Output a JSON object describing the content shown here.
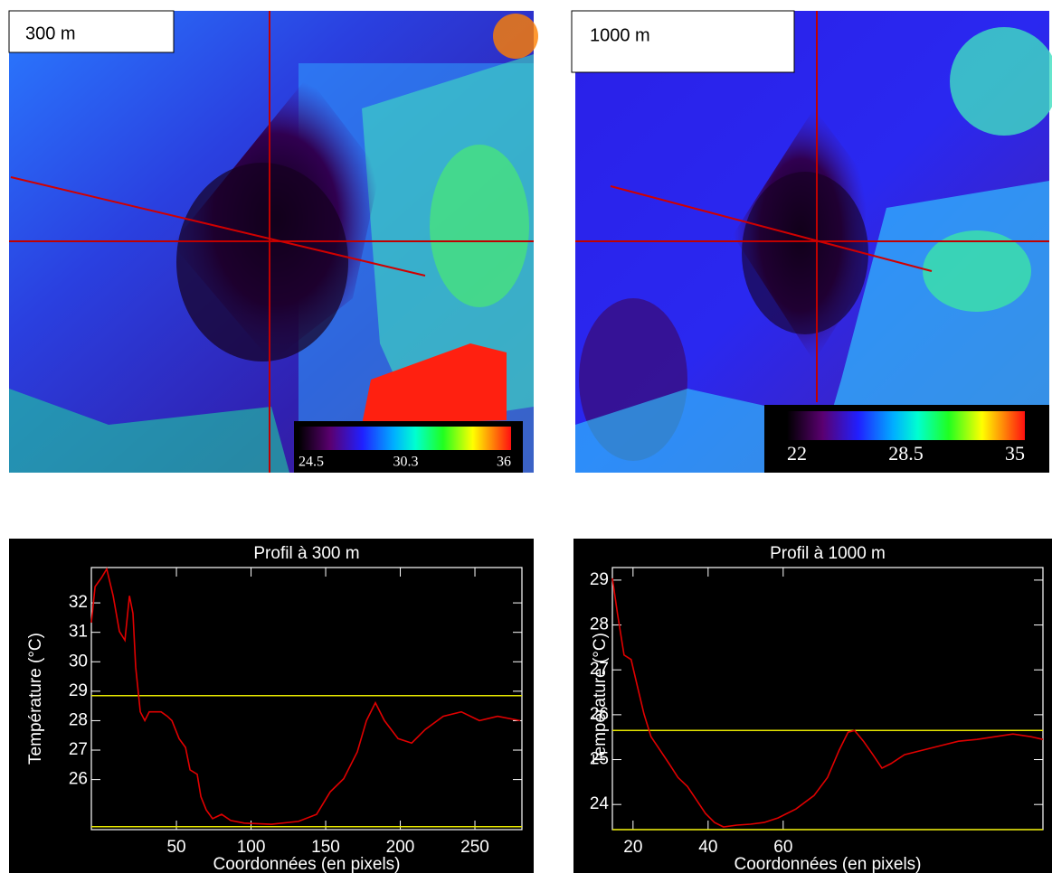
{
  "images": [
    {
      "label": "300 m",
      "clim": [
        24.5,
        36
      ],
      "colorbar_ticks": [
        24.5,
        30.3,
        36
      ]
    },
    {
      "label": "1000 m",
      "clim": [
        22,
        35
      ],
      "colorbar_ticks": [
        22,
        28.5,
        35
      ]
    }
  ],
  "chart_data": [
    {
      "type": "line",
      "title": "Profil à 300 m",
      "xlabel": "Coordonnées (en pixels)",
      "ylabel": "Température (°C)",
      "x": [
        -7,
        -4.5,
        -0.3,
        3.3,
        7.6,
        11.8,
        15.5,
        18.5,
        20.9,
        22.7,
        25.8,
        28.8,
        31.8,
        34.8,
        39.7,
        43.9,
        47.0,
        51.8,
        56.1,
        59.1,
        63.9,
        66.4,
        70.0,
        74.2,
        80.3,
        86.4,
        95.5,
        113.6,
        131.8,
        143.9,
        153.0,
        162.1,
        171.2,
        177.3,
        183.3,
        189.4,
        198.5,
        207.6,
        216.7,
        228.8,
        240.9,
        253.0,
        265.2,
        280.3
      ],
      "series": [
        {
          "color": "#e00000",
          "values": [
            31.33,
            32.55,
            32.85,
            33.15,
            32.24,
            31.03,
            30.73,
            32.24,
            31.64,
            29.82,
            28.3,
            28.0,
            28.3,
            28.3,
            28.3,
            28.15,
            28.0,
            27.39,
            27.09,
            26.33,
            26.18,
            25.42,
            24.97,
            24.67,
            24.82,
            24.61,
            24.52,
            24.48,
            24.58,
            24.82,
            25.58,
            26.03,
            26.94,
            28.0,
            28.61,
            28.0,
            27.39,
            27.24,
            27.7,
            28.15,
            28.3,
            28.0,
            28.15,
            28.0
          ]
        }
      ],
      "hlines": [
        28.85,
        24.4
      ],
      "hline_color": "#e8e800",
      "xlim": [
        -7,
        281.5
      ],
      "ylim": [
        24.3,
        33.2
      ],
      "xticks": [
        50,
        100,
        150,
        200,
        250
      ],
      "yticks": [
        26,
        27,
        28,
        29,
        30,
        31,
        32
      ]
    },
    {
      "type": "line",
      "title": "Profil à 1000 m",
      "xlabel": "Coordonnées (en pixels)",
      "ylabel": "Température (°C)",
      "x": [
        14.5,
        15.9,
        17.6,
        19.5,
        21.2,
        22.9,
        24.8,
        27.2,
        29.6,
        32.0,
        34.5,
        36.9,
        39.3,
        41.7,
        44.1,
        47.7,
        51.3,
        54.9,
        58.6,
        63.4,
        68.2,
        71.8,
        74.9,
        77.3,
        79.0,
        81.4,
        83.9,
        86.3,
        88.7,
        92.3,
        97.1,
        101.9,
        106.7,
        111.6,
        116.4,
        121.2,
        126.0,
        129.2
      ],
      "series": [
        {
          "color": "#e00000",
          "values": [
            29.04,
            28.23,
            27.33,
            27.23,
            26.62,
            26.02,
            25.51,
            25.21,
            24.91,
            24.6,
            24.4,
            24.1,
            23.8,
            23.6,
            23.5,
            23.54,
            23.56,
            23.6,
            23.7,
            23.9,
            24.2,
            24.6,
            25.21,
            25.61,
            25.65,
            25.41,
            25.11,
            24.81,
            24.91,
            25.11,
            25.21,
            25.31,
            25.41,
            25.45,
            25.51,
            25.57,
            25.51,
            25.45
          ]
        }
      ],
      "hlines": [
        25.65,
        23.44
      ],
      "hline_color": "#e8e800",
      "xlim": [
        14.5,
        129.2
      ],
      "ylim": [
        23.44,
        29.28
      ],
      "xticks": [
        20,
        40,
        60
      ],
      "yticks": [
        24,
        25,
        26,
        27,
        28,
        29
      ]
    }
  ]
}
